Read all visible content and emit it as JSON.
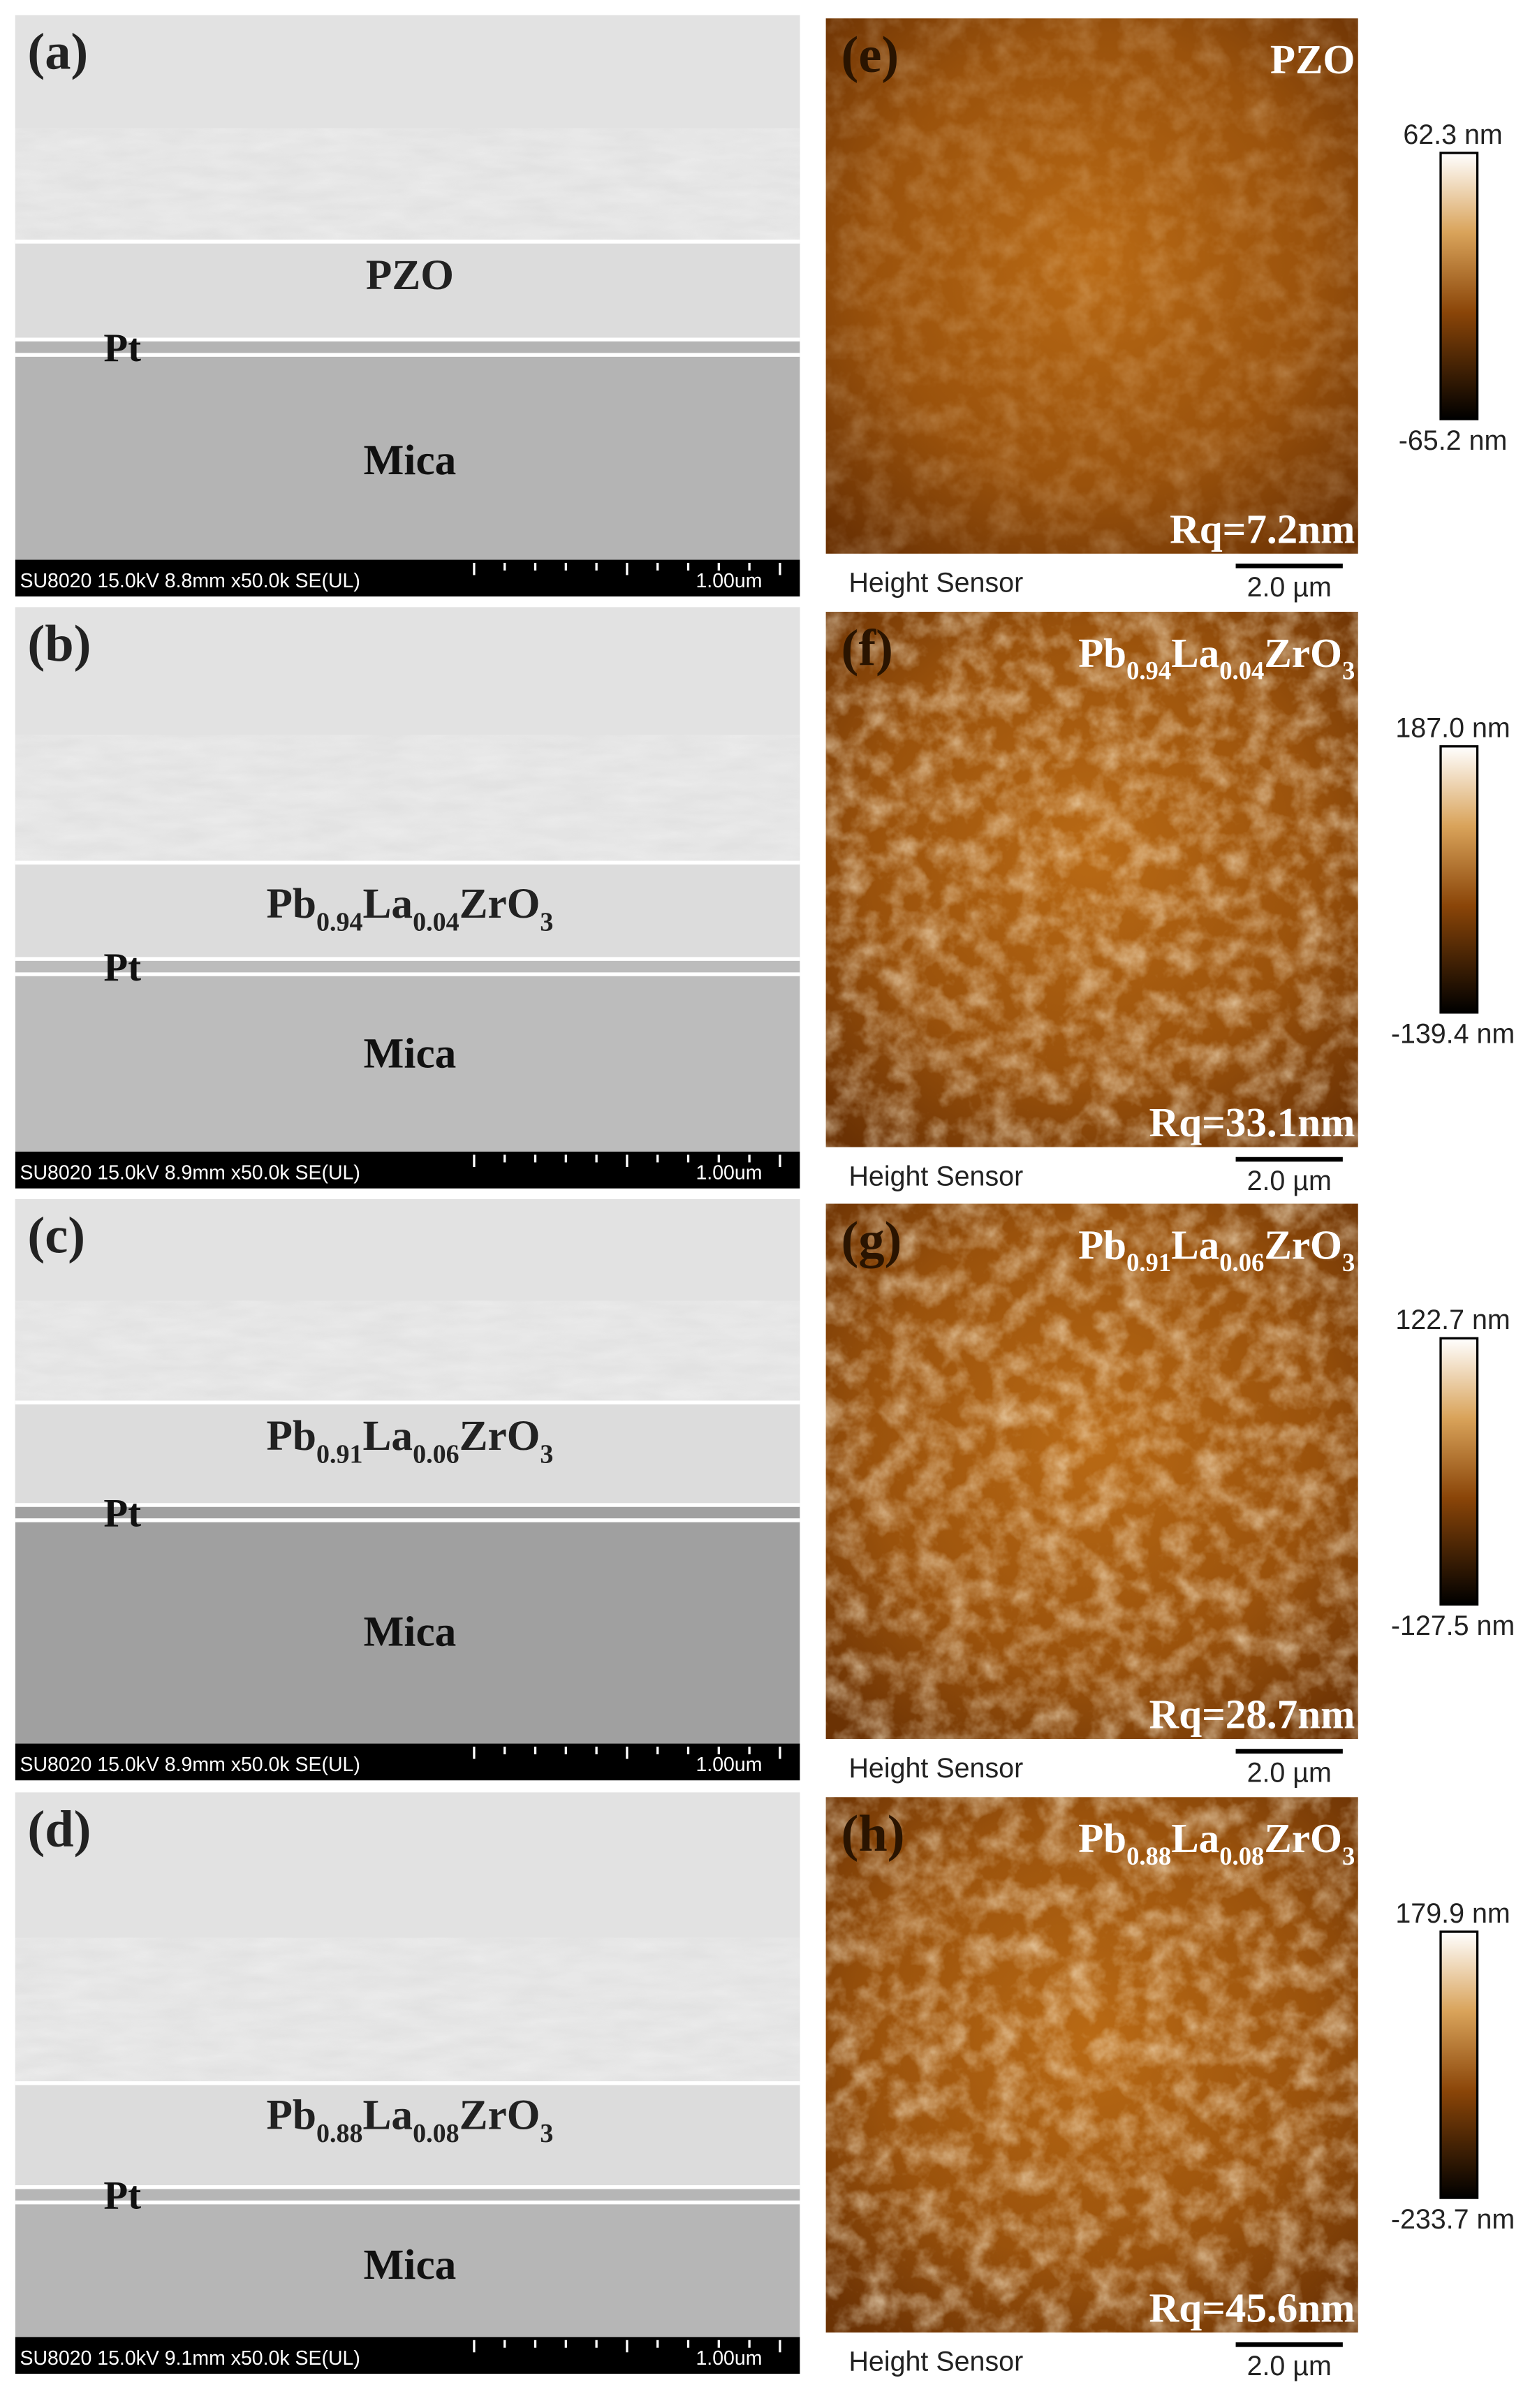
{
  "sem_panels": [
    {
      "label": "(a)",
      "layer": [
        "PZO"
      ],
      "electrode": "Pt",
      "substrate": "Mica",
      "info": "SU8020 15.0kV 8.8mm x50.0k SE(UL)",
      "scale": "1.00um"
    },
    {
      "label": "(b)",
      "layer": [
        "Pb",
        "0.94",
        "La",
        "0.04",
        "ZrO",
        "3"
      ],
      "electrode": "Pt",
      "substrate": "Mica",
      "info": "SU8020 15.0kV 8.9mm x50.0k SE(UL)",
      "scale": "1.00um"
    },
    {
      "label": "(c)",
      "layer": [
        "Pb",
        "0.91",
        "La",
        "0.06",
        "ZrO",
        "3"
      ],
      "electrode": "Pt",
      "substrate": "Mica",
      "info": "SU8020 15.0kV 8.9mm x50.0k SE(UL)",
      "scale": "1.00um"
    },
    {
      "label": "(d)",
      "layer": [
        "Pb",
        "0.88",
        "La",
        "0.08",
        "ZrO",
        "3"
      ],
      "electrode": "Pt",
      "substrate": "Mica",
      "info": "SU8020 15.0kV 9.1mm x50.0k SE(UL)",
      "scale": "1.00um"
    }
  ],
  "afm_panels": [
    {
      "label": "(e)",
      "material": [
        "PZO"
      ],
      "max": "62.3 nm",
      "min": "-65.2 nm",
      "rq": "Rq=7.2nm",
      "sensor": "Height Sensor",
      "scale": "2.0 µm"
    },
    {
      "label": "(f)",
      "material": [
        "Pb",
        "0.94",
        "La",
        "0.04",
        "ZrO",
        "3"
      ],
      "max": "187.0 nm",
      "min": "-139.4 nm",
      "rq": "Rq=33.1nm",
      "sensor": "Height Sensor",
      "scale": "2.0 µm"
    },
    {
      "label": "(g)",
      "material": [
        "Pb",
        "0.91",
        "La",
        "0.06",
        "ZrO",
        "3"
      ],
      "max": "122.7 nm",
      "min": "-127.5 nm",
      "rq": "Rq=28.7nm",
      "sensor": "Height Sensor",
      "scale": "2.0 µm"
    },
    {
      "label": "(h)",
      "material": [
        "Pb",
        "0.88",
        "La",
        "0.08",
        "ZrO",
        "3"
      ],
      "max": "179.9 nm",
      "min": "-233.7 nm",
      "rq": "Rq=45.6nm",
      "sensor": "Height Sensor",
      "scale": "2.0 µm"
    }
  ]
}
